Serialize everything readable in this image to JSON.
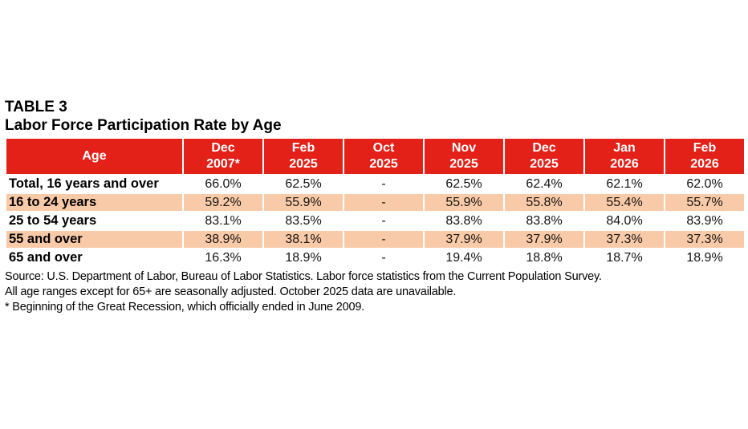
{
  "title": {
    "line1": "TABLE 3",
    "line2": "Labor Force Participation Rate by Age"
  },
  "chart_data": {
    "type": "table",
    "title": "Labor Force Participation Rate by Age",
    "columns": [
      "Age",
      "Dec\n2007*",
      "Feb\n2025",
      "Oct\n2025",
      "Nov\n2025",
      "Dec\n2025",
      "Jan\n2026",
      "Feb\n2026"
    ],
    "rows": [
      {
        "label": "Total, 16 years and over",
        "values": [
          "66.0%",
          "62.5%",
          "-",
          "62.5%",
          "62.4%",
          "62.1%",
          "62.0%"
        ],
        "shaded": false
      },
      {
        "label": "16 to 24 years",
        "values": [
          "59.2%",
          "55.9%",
          "-",
          "55.9%",
          "55.8%",
          "55.4%",
          "55.7%"
        ],
        "shaded": true
      },
      {
        "label": "25 to 54 years",
        "values": [
          "83.1%",
          "83.5%",
          "-",
          "83.8%",
          "83.8%",
          "84.0%",
          "83.9%"
        ],
        "shaded": false
      },
      {
        "label": "55 and over",
        "values": [
          "38.9%",
          "38.1%",
          "-",
          "37.9%",
          "37.9%",
          "37.3%",
          "37.3%"
        ],
        "shaded": true
      },
      {
        "label": "65 and over",
        "values": [
          "16.3%",
          "18.9%",
          "-",
          "19.4%",
          "18.8%",
          "18.7%",
          "18.9%"
        ],
        "shaded": false
      }
    ]
  },
  "notes": [
    "Source: U.S. Department of Labor, Bureau of Labor Statistics. Labor force statistics from the Current Population Survey.",
    "All age ranges except for 65+ are seasonally adjusted. October 2025 data are unavailable.",
    "* Beginning of the Great Recession, which officially ended in June 2009."
  ],
  "colors": {
    "header_bg": "#e32119",
    "header_text": "#ffffff",
    "shaded_row_bg": "#f9caa7"
  }
}
